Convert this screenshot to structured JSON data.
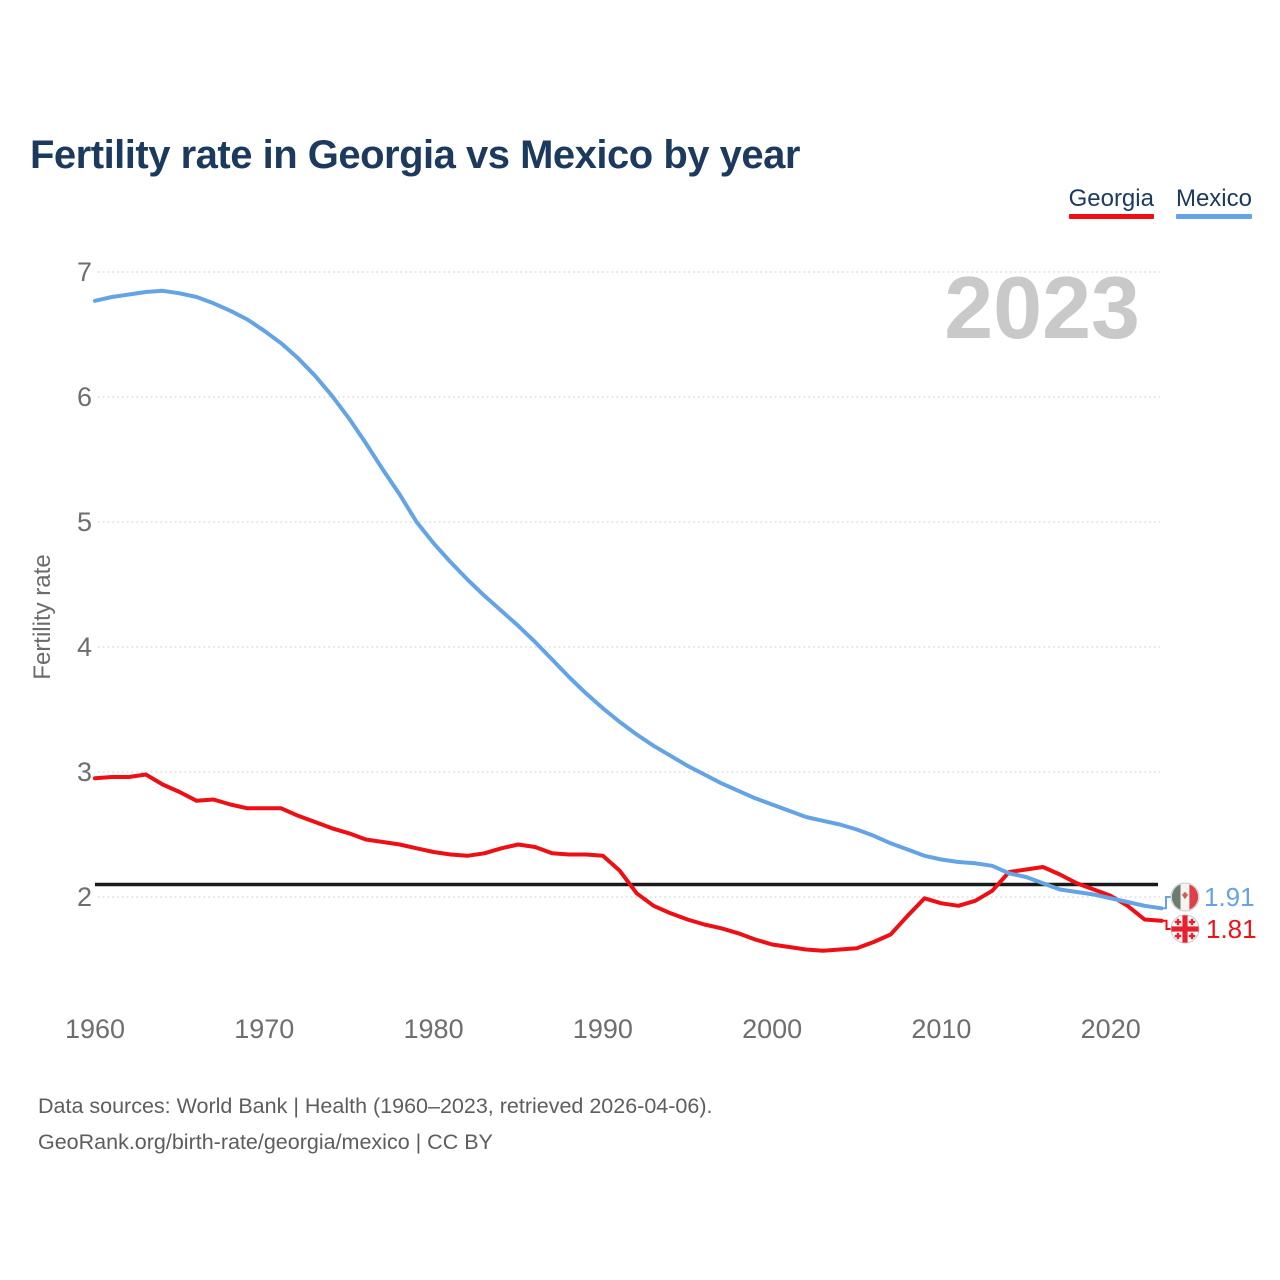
{
  "page": {
    "title": "Fertility rate in Georgia vs Mexico by year",
    "watermark_year": "2023"
  },
  "legend": {
    "items": [
      {
        "label": "Georgia",
        "color": "#ee0f14"
      },
      {
        "label": "Mexico",
        "color": "#64a4e6"
      }
    ]
  },
  "y_axis": {
    "title": "Fertility rate",
    "ticks": [
      "7",
      "6",
      "5",
      "4",
      "3",
      "2"
    ]
  },
  "x_axis": {
    "ticks": [
      "1960",
      "1970",
      "1980",
      "1990",
      "2000",
      "2010",
      "2020"
    ]
  },
  "end_labels": [
    {
      "series": "Mexico",
      "text": "1.91",
      "color": "#64a4e6",
      "flag": "mexico-flag-icon"
    },
    {
      "series": "Georgia",
      "text": "1.81",
      "color": "#ef1217",
      "flag": "georgia-flag-icon"
    }
  ],
  "footer": {
    "line1": "Data sources: World Bank | Health (1960–2023, retrieved 2026-04-06).",
    "line2": "GeoRank.org/birth-rate/georgia/mexico | CC BY"
  },
  "chart_data": {
    "type": "line",
    "title": "Fertility rate in Georgia vs Mexico by year",
    "xlabel": "",
    "ylabel": "Fertility rate",
    "x_range": [
      1960,
      2023
    ],
    "ylim": [
      1.2,
      7.2
    ],
    "grid": "horizontal-dotted",
    "legend_position": "top-right",
    "watermark": "2023",
    "reference_line": {
      "value": 2.1,
      "color": "#1a1a1a"
    },
    "x": [
      1960,
      1961,
      1962,
      1963,
      1964,
      1965,
      1966,
      1967,
      1968,
      1969,
      1970,
      1971,
      1972,
      1973,
      1974,
      1975,
      1976,
      1977,
      1978,
      1979,
      1980,
      1981,
      1982,
      1983,
      1984,
      1985,
      1986,
      1987,
      1988,
      1989,
      1990,
      1991,
      1992,
      1993,
      1994,
      1995,
      1996,
      1997,
      1998,
      1999,
      2000,
      2001,
      2002,
      2003,
      2004,
      2005,
      2006,
      2007,
      2008,
      2009,
      2010,
      2011,
      2012,
      2013,
      2014,
      2015,
      2016,
      2017,
      2018,
      2019,
      2020,
      2021,
      2022,
      2023
    ],
    "series": [
      {
        "name": "Georgia",
        "color": "#ee0f14",
        "end_value": 1.81,
        "values": [
          2.95,
          2.96,
          2.96,
          2.98,
          2.9,
          2.84,
          2.77,
          2.78,
          2.74,
          2.71,
          2.71,
          2.71,
          2.65,
          2.6,
          2.55,
          2.51,
          2.46,
          2.44,
          2.42,
          2.39,
          2.36,
          2.34,
          2.33,
          2.35,
          2.39,
          2.42,
          2.4,
          2.35,
          2.34,
          2.34,
          2.33,
          2.21,
          2.03,
          1.93,
          1.87,
          1.82,
          1.78,
          1.75,
          1.71,
          1.66,
          1.62,
          1.6,
          1.58,
          1.57,
          1.58,
          1.59,
          1.64,
          1.7,
          1.85,
          1.99,
          1.95,
          1.93,
          1.97,
          2.05,
          2.2,
          2.22,
          2.24,
          2.18,
          2.11,
          2.06,
          2.01,
          1.93,
          1.82,
          1.81
        ]
      },
      {
        "name": "Mexico",
        "color": "#64a4e6",
        "end_value": 1.91,
        "values": [
          6.77,
          6.8,
          6.82,
          6.84,
          6.85,
          6.83,
          6.8,
          6.75,
          6.69,
          6.62,
          6.53,
          6.43,
          6.31,
          6.17,
          6.01,
          5.83,
          5.63,
          5.42,
          5.22,
          5.0,
          4.83,
          4.68,
          4.54,
          4.41,
          4.29,
          4.17,
          4.04,
          3.9,
          3.76,
          3.63,
          3.51,
          3.4,
          3.3,
          3.21,
          3.13,
          3.05,
          2.98,
          2.91,
          2.85,
          2.79,
          2.74,
          2.69,
          2.64,
          2.61,
          2.58,
          2.54,
          2.49,
          2.43,
          2.38,
          2.33,
          2.3,
          2.28,
          2.27,
          2.25,
          2.19,
          2.16,
          2.11,
          2.06,
          2.04,
          2.02,
          1.99,
          1.96,
          1.93,
          1.91
        ]
      }
    ]
  }
}
